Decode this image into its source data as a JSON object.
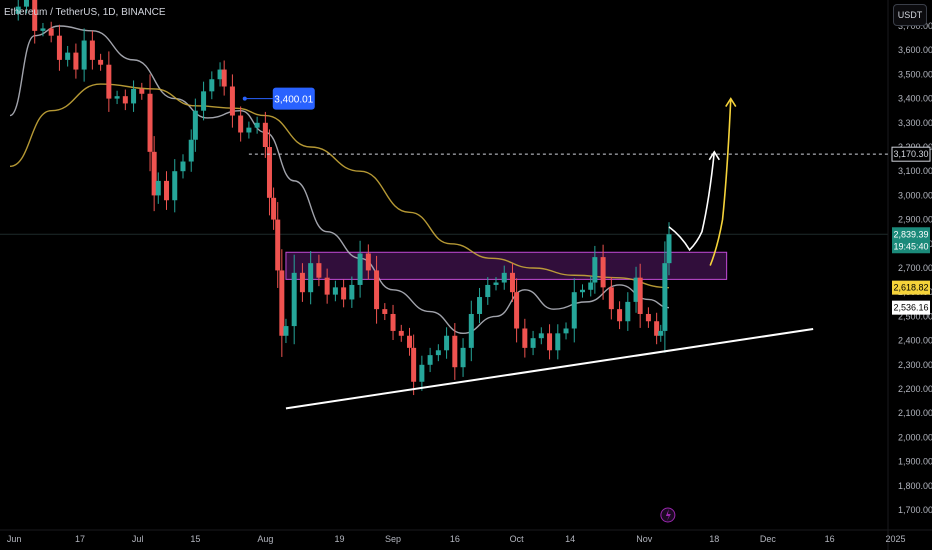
{
  "header": {
    "title": "Ethereum / TetherUS, 1D, BINANCE",
    "unit_button": "USDT"
  },
  "colors": {
    "background": "#000000",
    "up_candle": "#26a69a",
    "down_candle": "#ef5350",
    "sma_fast": "#b2b5be",
    "sma_slow": "#c9a93a",
    "zone_fill": "#3a1045",
    "zone_border": "#c24bd6",
    "trendline": "#ffffff",
    "arrow_white": "#ffffff",
    "arrow_yellow": "#f5d33a",
    "callout": "#2962ff",
    "price_badge": "#1b8a7a",
    "slow_badge": "#f5d33a",
    "flash_icon": "#9c27b0"
  },
  "chart_data": {
    "type": "candlestick",
    "symbol": "Ethereum / TetherUS",
    "timeframe": "1D",
    "exchange": "BINANCE",
    "ylim": [
      1650,
      3720
    ],
    "y_ticks": [
      1700,
      1800,
      1900,
      2000,
      2100,
      2200,
      2300,
      2400,
      2500,
      2600,
      2700,
      2800,
      2900,
      3000,
      3100,
      3200,
      3300,
      3400,
      3500,
      3600,
      3700
    ],
    "y_tick_labels": [
      "1,700.00",
      "1,800.00",
      "1,900.00",
      "2,000.00",
      "2,100.00",
      "2,200.00",
      "2,300.00",
      "2,400.00",
      "2,500.00",
      "2,600.00",
      "2,700.00",
      "2,800.00",
      "2,900.00",
      "3,000.00",
      "3,100.00",
      "3,200.00",
      "3,300.00",
      "3,400.00",
      "3,500.00",
      "3,600.00",
      "3,700.00"
    ],
    "x_range": [
      "2024-05-31",
      "2025-01-05"
    ],
    "x_ticks": [
      {
        "date": "2024-06-01",
        "label": "Jun"
      },
      {
        "date": "2024-06-17",
        "label": "17"
      },
      {
        "date": "2024-07-01",
        "label": "Jul"
      },
      {
        "date": "2024-07-15",
        "label": "15"
      },
      {
        "date": "2024-08-01",
        "label": "Aug"
      },
      {
        "date": "2024-08-19",
        "label": "19"
      },
      {
        "date": "2024-09-01",
        "label": "Sep"
      },
      {
        "date": "2024-09-16",
        "label": "16"
      },
      {
        "date": "2024-10-01",
        "label": "Oct"
      },
      {
        "date": "2024-10-14",
        "label": "14"
      },
      {
        "date": "2024-11-01",
        "label": "Nov"
      },
      {
        "date": "2024-11-18",
        "label": "18"
      },
      {
        "date": "2024-12-01",
        "label": "Dec"
      },
      {
        "date": "2024-12-16",
        "label": "16"
      },
      {
        "date": "2025-01-01",
        "label": "2025"
      }
    ],
    "candles_close": [
      {
        "date": "2024-05-30",
        "c": 3750
      },
      {
        "date": "2024-06-02",
        "c": 3780
      },
      {
        "date": "2024-06-04",
        "c": 3810
      },
      {
        "date": "2024-06-06",
        "c": 3680
      },
      {
        "date": "2024-06-08",
        "c": 3690
      },
      {
        "date": "2024-06-10",
        "c": 3660
      },
      {
        "date": "2024-06-12",
        "c": 3560
      },
      {
        "date": "2024-06-14",
        "c": 3590
      },
      {
        "date": "2024-06-16",
        "c": 3520
      },
      {
        "date": "2024-06-18",
        "c": 3640
      },
      {
        "date": "2024-06-20",
        "c": 3560
      },
      {
        "date": "2024-06-22",
        "c": 3540
      },
      {
        "date": "2024-06-24",
        "c": 3400
      },
      {
        "date": "2024-06-26",
        "c": 3410
      },
      {
        "date": "2024-06-28",
        "c": 3380
      },
      {
        "date": "2024-06-30",
        "c": 3440
      },
      {
        "date": "2024-07-02",
        "c": 3420
      },
      {
        "date": "2024-07-04",
        "c": 3180
      },
      {
        "date": "2024-07-05",
        "c": 3000
      },
      {
        "date": "2024-07-06",
        "c": 3060
      },
      {
        "date": "2024-07-08",
        "c": 2980
      },
      {
        "date": "2024-07-10",
        "c": 3100
      },
      {
        "date": "2024-07-12",
        "c": 3140
      },
      {
        "date": "2024-07-14",
        "c": 3230
      },
      {
        "date": "2024-07-15",
        "c": 3350
      },
      {
        "date": "2024-07-17",
        "c": 3430
      },
      {
        "date": "2024-07-19",
        "c": 3480
      },
      {
        "date": "2024-07-21",
        "c": 3520
      },
      {
        "date": "2024-07-22",
        "c": 3450
      },
      {
        "date": "2024-07-24",
        "c": 3330
      },
      {
        "date": "2024-07-26",
        "c": 3260
      },
      {
        "date": "2024-07-28",
        "c": 3280
      },
      {
        "date": "2024-07-30",
        "c": 3300
      },
      {
        "date": "2024-08-01",
        "c": 3200
      },
      {
        "date": "2024-08-02",
        "c": 2990
      },
      {
        "date": "2024-08-03",
        "c": 2900
      },
      {
        "date": "2024-08-04",
        "c": 2690
      },
      {
        "date": "2024-08-05",
        "c": 2420
      },
      {
        "date": "2024-08-06",
        "c": 2460
      },
      {
        "date": "2024-08-08",
        "c": 2680
      },
      {
        "date": "2024-08-10",
        "c": 2600
      },
      {
        "date": "2024-08-12",
        "c": 2720
      },
      {
        "date": "2024-08-14",
        "c": 2660
      },
      {
        "date": "2024-08-16",
        "c": 2590
      },
      {
        "date": "2024-08-18",
        "c": 2620
      },
      {
        "date": "2024-08-20",
        "c": 2570
      },
      {
        "date": "2024-08-22",
        "c": 2630
      },
      {
        "date": "2024-08-24",
        "c": 2760
      },
      {
        "date": "2024-08-26",
        "c": 2690
      },
      {
        "date": "2024-08-28",
        "c": 2530
      },
      {
        "date": "2024-08-30",
        "c": 2510
      },
      {
        "date": "2024-09-01",
        "c": 2440
      },
      {
        "date": "2024-09-03",
        "c": 2420
      },
      {
        "date": "2024-09-05",
        "c": 2370
      },
      {
        "date": "2024-09-06",
        "c": 2230
      },
      {
        "date": "2024-09-08",
        "c": 2300
      },
      {
        "date": "2024-09-10",
        "c": 2340
      },
      {
        "date": "2024-09-12",
        "c": 2360
      },
      {
        "date": "2024-09-14",
        "c": 2420
      },
      {
        "date": "2024-09-16",
        "c": 2290
      },
      {
        "date": "2024-09-18",
        "c": 2370
      },
      {
        "date": "2024-09-20",
        "c": 2510
      },
      {
        "date": "2024-09-22",
        "c": 2580
      },
      {
        "date": "2024-09-24",
        "c": 2630
      },
      {
        "date": "2024-09-26",
        "c": 2640
      },
      {
        "date": "2024-09-28",
        "c": 2680
      },
      {
        "date": "2024-09-30",
        "c": 2600
      },
      {
        "date": "2024-10-01",
        "c": 2450
      },
      {
        "date": "2024-10-03",
        "c": 2370
      },
      {
        "date": "2024-10-05",
        "c": 2410
      },
      {
        "date": "2024-10-07",
        "c": 2430
      },
      {
        "date": "2024-10-09",
        "c": 2360
      },
      {
        "date": "2024-10-11",
        "c": 2430
      },
      {
        "date": "2024-10-13",
        "c": 2450
      },
      {
        "date": "2024-10-15",
        "c": 2600
      },
      {
        "date": "2024-10-17",
        "c": 2610
      },
      {
        "date": "2024-10-19",
        "c": 2640
      },
      {
        "date": "2024-10-20",
        "c": 2745
      },
      {
        "date": "2024-10-22",
        "c": 2620
      },
      {
        "date": "2024-10-24",
        "c": 2530
      },
      {
        "date": "2024-10-26",
        "c": 2480
      },
      {
        "date": "2024-10-28",
        "c": 2560
      },
      {
        "date": "2024-10-30",
        "c": 2660
      },
      {
        "date": "2024-10-31",
        "c": 2510
      },
      {
        "date": "2024-11-02",
        "c": 2480
      },
      {
        "date": "2024-11-04",
        "c": 2420
      },
      {
        "date": "2024-11-05",
        "c": 2440
      },
      {
        "date": "2024-11-06",
        "c": 2720
      },
      {
        "date": "2024-11-07",
        "c": 2839.39
      }
    ],
    "series": [
      {
        "name": "SMA fast",
        "type": "line",
        "points": [
          [
            "2024-05-31",
            3330
          ],
          [
            "2024-06-06",
            3660
          ],
          [
            "2024-06-12",
            3700
          ],
          [
            "2024-06-20",
            3680
          ],
          [
            "2024-06-30",
            3560
          ],
          [
            "2024-07-10",
            3400
          ],
          [
            "2024-07-18",
            3320
          ],
          [
            "2024-07-26",
            3350
          ],
          [
            "2024-08-01",
            3260
          ],
          [
            "2024-08-08",
            3060
          ],
          [
            "2024-08-16",
            2850
          ],
          [
            "2024-08-24",
            2740
          ],
          [
            "2024-09-01",
            2610
          ],
          [
            "2024-09-10",
            2520
          ],
          [
            "2024-09-18",
            2430
          ],
          [
            "2024-09-26",
            2500
          ],
          [
            "2024-10-03",
            2610
          ],
          [
            "2024-10-10",
            2530
          ],
          [
            "2024-10-18",
            2560
          ],
          [
            "2024-10-26",
            2630
          ],
          [
            "2024-11-02",
            2570
          ],
          [
            "2024-11-07",
            2536.16
          ]
        ]
      },
      {
        "name": "SMA slow",
        "type": "line",
        "points": [
          [
            "2024-05-31",
            3120
          ],
          [
            "2024-06-10",
            3350
          ],
          [
            "2024-06-22",
            3460
          ],
          [
            "2024-07-05",
            3440
          ],
          [
            "2024-07-15",
            3370
          ],
          [
            "2024-07-25",
            3360
          ],
          [
            "2024-08-01",
            3330
          ],
          [
            "2024-08-12",
            3200
          ],
          [
            "2024-08-24",
            3100
          ],
          [
            "2024-09-05",
            2930
          ],
          [
            "2024-09-15",
            2800
          ],
          [
            "2024-09-25",
            2740
          ],
          [
            "2024-10-05",
            2700
          ],
          [
            "2024-10-15",
            2670
          ],
          [
            "2024-10-25",
            2660
          ],
          [
            "2024-11-07",
            2618.82
          ]
        ]
      }
    ],
    "annotations": {
      "callout_label": "3,400.01",
      "callout_value": 3400.01,
      "callout_date": "2024-07-27",
      "dashed_level_label": "3,170.30",
      "dashed_level_value": 3170.3,
      "zone": {
        "from_date": "2024-08-06",
        "to_date": "2024-11-21",
        "low": 2653,
        "high": 2765
      },
      "trendline": {
        "from": [
          "2024-08-06",
          2120
        ],
        "to": [
          "2024-12-12",
          2448
        ]
      },
      "price_label": "2,839.39",
      "price_value": 2839.39,
      "countdown_label": "19:45:40",
      "sma_fast_label": "2,536.16",
      "sma_slow_label": "2,618.82",
      "projection_white": [
        [
          "2024-11-07",
          2870
        ],
        [
          "2024-11-12",
          2775
        ],
        [
          "2024-11-15",
          2850
        ],
        [
          "2024-11-18",
          3180
        ]
      ],
      "projection_yellow": [
        [
          "2024-11-17",
          2710
        ],
        [
          "2024-11-20",
          2900
        ],
        [
          "2024-11-22",
          3400
        ]
      ]
    }
  }
}
